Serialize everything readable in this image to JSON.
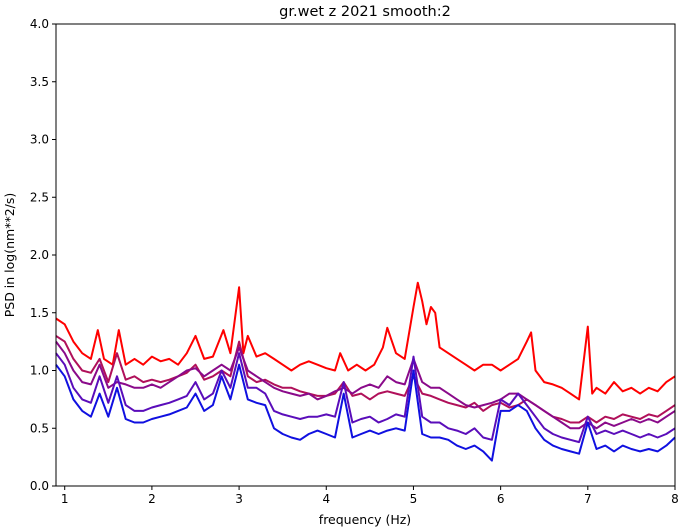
{
  "chart_data": {
    "type": "line",
    "title": "gr.wet z 2021 smooth:2",
    "xlabel": "frequency (Hz)",
    "ylabel": "PSD in log(nm**2/s)",
    "xlim": [
      0.9,
      8.0
    ],
    "ylim": [
      0.0,
      4.0
    ],
    "xticks": [
      1,
      2,
      3,
      4,
      5,
      6,
      7,
      8
    ],
    "xtick_labels": [
      "1",
      "2",
      "3",
      "4",
      "5",
      "6",
      "7",
      "8"
    ],
    "yticks": [
      0.0,
      0.5,
      1.0,
      1.5,
      2.0,
      2.5,
      3.0,
      3.5,
      4.0
    ],
    "ytick_labels": [
      "0.0",
      "0.5",
      "1.0",
      "1.5",
      "2.0",
      "2.5",
      "3.0",
      "3.5",
      "4.0"
    ],
    "grid": false,
    "legend": false,
    "series": [
      {
        "color": "#ff0000",
        "x": [
          0.9,
          1.0,
          1.1,
          1.2,
          1.3,
          1.38,
          1.45,
          1.55,
          1.62,
          1.7,
          1.8,
          1.9,
          2.0,
          2.1,
          2.2,
          2.3,
          2.4,
          2.5,
          2.6,
          2.7,
          2.82,
          2.9,
          3.0,
          3.05,
          3.1,
          3.2,
          3.3,
          3.4,
          3.5,
          3.6,
          3.7,
          3.8,
          3.9,
          4.0,
          4.1,
          4.16,
          4.25,
          4.35,
          4.45,
          4.55,
          4.65,
          4.7,
          4.8,
          4.9,
          5.0,
          5.05,
          5.1,
          5.15,
          5.2,
          5.25,
          5.3,
          5.4,
          5.5,
          5.6,
          5.7,
          5.8,
          5.9,
          6.0,
          6.1,
          6.2,
          6.3,
          6.35,
          6.4,
          6.5,
          6.6,
          6.7,
          6.8,
          6.9,
          7.0,
          7.05,
          7.1,
          7.2,
          7.3,
          7.4,
          7.5,
          7.6,
          7.7,
          7.8,
          7.9,
          8.0
        ],
        "y": [
          1.45,
          1.4,
          1.25,
          1.15,
          1.1,
          1.35,
          1.1,
          1.05,
          1.35,
          1.05,
          1.1,
          1.05,
          1.12,
          1.08,
          1.1,
          1.05,
          1.15,
          1.3,
          1.1,
          1.12,
          1.35,
          1.15,
          1.72,
          1.15,
          1.3,
          1.12,
          1.15,
          1.1,
          1.05,
          1.0,
          1.05,
          1.08,
          1.05,
          1.02,
          1.0,
          1.15,
          1.0,
          1.05,
          1.0,
          1.05,
          1.2,
          1.37,
          1.15,
          1.1,
          1.55,
          1.76,
          1.6,
          1.4,
          1.55,
          1.5,
          1.2,
          1.15,
          1.1,
          1.05,
          1.0,
          1.05,
          1.05,
          1.0,
          1.05,
          1.1,
          1.25,
          1.33,
          1.0,
          0.9,
          0.88,
          0.85,
          0.8,
          0.75,
          1.38,
          0.8,
          0.85,
          0.8,
          0.9,
          0.82,
          0.85,
          0.8,
          0.85,
          0.82,
          0.9,
          0.95
        ]
      },
      {
        "color": "#b0105a",
        "x": [
          0.9,
          1.0,
          1.1,
          1.2,
          1.3,
          1.4,
          1.5,
          1.6,
          1.7,
          1.8,
          1.9,
          2.0,
          2.1,
          2.2,
          2.3,
          2.4,
          2.5,
          2.6,
          2.7,
          2.8,
          2.9,
          3.0,
          3.1,
          3.2,
          3.3,
          3.4,
          3.5,
          3.6,
          3.7,
          3.8,
          3.9,
          4.0,
          4.1,
          4.2,
          4.3,
          4.4,
          4.5,
          4.6,
          4.7,
          4.8,
          4.9,
          5.0,
          5.1,
          5.2,
          5.3,
          5.4,
          5.5,
          5.6,
          5.7,
          5.8,
          5.9,
          6.0,
          6.1,
          6.2,
          6.3,
          6.4,
          6.5,
          6.6,
          6.7,
          6.8,
          6.9,
          7.0,
          7.1,
          7.2,
          7.3,
          7.4,
          7.5,
          7.6,
          7.7,
          7.8,
          7.9,
          8.0
        ],
        "y": [
          1.3,
          1.25,
          1.1,
          1.0,
          0.98,
          1.1,
          0.9,
          1.15,
          0.92,
          0.95,
          0.9,
          0.92,
          0.9,
          0.92,
          0.95,
          0.98,
          1.05,
          0.92,
          0.95,
          1.0,
          0.95,
          1.25,
          0.95,
          0.9,
          0.92,
          0.88,
          0.85,
          0.85,
          0.82,
          0.8,
          0.78,
          0.78,
          0.8,
          0.9,
          0.78,
          0.8,
          0.75,
          0.8,
          0.82,
          0.8,
          0.78,
          0.95,
          0.8,
          0.78,
          0.75,
          0.72,
          0.7,
          0.68,
          0.72,
          0.65,
          0.7,
          0.72,
          0.68,
          0.7,
          0.75,
          0.7,
          0.65,
          0.6,
          0.58,
          0.55,
          0.55,
          0.6,
          0.55,
          0.6,
          0.58,
          0.62,
          0.6,
          0.58,
          0.62,
          0.6,
          0.65,
          0.7
        ]
      },
      {
        "color": "#8a0a8a",
        "x": [
          0.9,
          1.0,
          1.1,
          1.2,
          1.3,
          1.4,
          1.5,
          1.6,
          1.7,
          1.8,
          1.9,
          2.0,
          2.1,
          2.2,
          2.3,
          2.4,
          2.5,
          2.6,
          2.7,
          2.8,
          2.9,
          3.0,
          3.1,
          3.2,
          3.3,
          3.4,
          3.5,
          3.6,
          3.7,
          3.8,
          3.9,
          4.0,
          4.1,
          4.2,
          4.3,
          4.4,
          4.5,
          4.6,
          4.7,
          4.8,
          4.9,
          5.0,
          5.1,
          5.2,
          5.3,
          5.4,
          5.5,
          5.6,
          5.7,
          5.8,
          5.9,
          6.0,
          6.1,
          6.2,
          6.3,
          6.4,
          6.5,
          6.6,
          6.7,
          6.8,
          6.9,
          7.0,
          7.1,
          7.2,
          7.3,
          7.4,
          7.5,
          7.6,
          7.7,
          7.8,
          7.9,
          8.0
        ],
        "y": [
          1.25,
          1.15,
          1.0,
          0.9,
          0.88,
          1.05,
          0.85,
          0.9,
          0.88,
          0.85,
          0.85,
          0.88,
          0.85,
          0.9,
          0.95,
          1.0,
          1.02,
          0.95,
          1.0,
          1.05,
          1.0,
          1.2,
          1.0,
          0.95,
          0.9,
          0.85,
          0.82,
          0.8,
          0.78,
          0.8,
          0.75,
          0.78,
          0.82,
          0.85,
          0.8,
          0.85,
          0.88,
          0.85,
          0.95,
          0.9,
          0.88,
          1.1,
          0.9,
          0.85,
          0.85,
          0.8,
          0.75,
          0.7,
          0.68,
          0.7,
          0.72,
          0.75,
          0.8,
          0.8,
          0.75,
          0.7,
          0.65,
          0.6,
          0.55,
          0.5,
          0.5,
          0.55,
          0.5,
          0.55,
          0.52,
          0.55,
          0.58,
          0.55,
          0.58,
          0.55,
          0.6,
          0.65
        ]
      },
      {
        "color": "#5a0dba",
        "x": [
          0.9,
          1.0,
          1.1,
          1.2,
          1.3,
          1.4,
          1.5,
          1.6,
          1.7,
          1.8,
          1.9,
          2.0,
          2.1,
          2.2,
          2.3,
          2.4,
          2.5,
          2.6,
          2.7,
          2.8,
          2.9,
          3.0,
          3.1,
          3.2,
          3.3,
          3.4,
          3.5,
          3.6,
          3.7,
          3.8,
          3.9,
          4.0,
          4.1,
          4.2,
          4.3,
          4.4,
          4.5,
          4.6,
          4.7,
          4.8,
          4.9,
          5.0,
          5.1,
          5.2,
          5.3,
          5.4,
          5.5,
          5.6,
          5.7,
          5.8,
          5.9,
          6.0,
          6.1,
          6.2,
          6.3,
          6.4,
          6.5,
          6.6,
          6.7,
          6.8,
          6.9,
          7.0,
          7.1,
          7.2,
          7.3,
          7.4,
          7.5,
          7.6,
          7.7,
          7.8,
          7.9,
          8.0
        ],
        "y": [
          1.15,
          1.05,
          0.85,
          0.75,
          0.72,
          0.95,
          0.72,
          0.95,
          0.7,
          0.65,
          0.65,
          0.68,
          0.7,
          0.72,
          0.75,
          0.78,
          0.9,
          0.75,
          0.8,
          1.0,
          0.85,
          1.15,
          0.85,
          0.85,
          0.8,
          0.65,
          0.62,
          0.6,
          0.58,
          0.6,
          0.6,
          0.62,
          0.6,
          0.9,
          0.55,
          0.58,
          0.6,
          0.55,
          0.58,
          0.62,
          0.6,
          1.12,
          0.6,
          0.55,
          0.55,
          0.5,
          0.48,
          0.45,
          0.5,
          0.42,
          0.4,
          0.75,
          0.7,
          0.8,
          0.7,
          0.6,
          0.5,
          0.45,
          0.42,
          0.4,
          0.38,
          0.6,
          0.45,
          0.48,
          0.45,
          0.48,
          0.45,
          0.42,
          0.45,
          0.42,
          0.45,
          0.5
        ]
      },
      {
        "color": "#1010e0",
        "x": [
          0.9,
          1.0,
          1.1,
          1.2,
          1.3,
          1.4,
          1.5,
          1.6,
          1.7,
          1.8,
          1.9,
          2.0,
          2.1,
          2.2,
          2.3,
          2.4,
          2.5,
          2.6,
          2.7,
          2.8,
          2.9,
          3.0,
          3.1,
          3.2,
          3.3,
          3.4,
          3.5,
          3.6,
          3.7,
          3.8,
          3.9,
          4.0,
          4.1,
          4.2,
          4.3,
          4.4,
          4.5,
          4.6,
          4.7,
          4.8,
          4.9,
          5.0,
          5.1,
          5.2,
          5.3,
          5.4,
          5.5,
          5.6,
          5.7,
          5.8,
          5.9,
          6.0,
          6.1,
          6.2,
          6.3,
          6.4,
          6.5,
          6.6,
          6.7,
          6.8,
          6.9,
          7.0,
          7.1,
          7.2,
          7.3,
          7.4,
          7.5,
          7.6,
          7.7,
          7.8,
          7.9,
          8.0
        ],
        "y": [
          1.05,
          0.95,
          0.75,
          0.65,
          0.6,
          0.8,
          0.6,
          0.85,
          0.58,
          0.55,
          0.55,
          0.58,
          0.6,
          0.62,
          0.65,
          0.68,
          0.8,
          0.65,
          0.7,
          0.95,
          0.75,
          1.05,
          0.75,
          0.72,
          0.7,
          0.5,
          0.45,
          0.42,
          0.4,
          0.45,
          0.48,
          0.45,
          0.42,
          0.8,
          0.42,
          0.45,
          0.48,
          0.45,
          0.48,
          0.5,
          0.48,
          1.0,
          0.45,
          0.42,
          0.42,
          0.4,
          0.35,
          0.32,
          0.35,
          0.3,
          0.22,
          0.65,
          0.65,
          0.7,
          0.65,
          0.5,
          0.4,
          0.35,
          0.32,
          0.3,
          0.28,
          0.55,
          0.32,
          0.35,
          0.3,
          0.35,
          0.32,
          0.3,
          0.32,
          0.3,
          0.35,
          0.42
        ]
      }
    ]
  }
}
